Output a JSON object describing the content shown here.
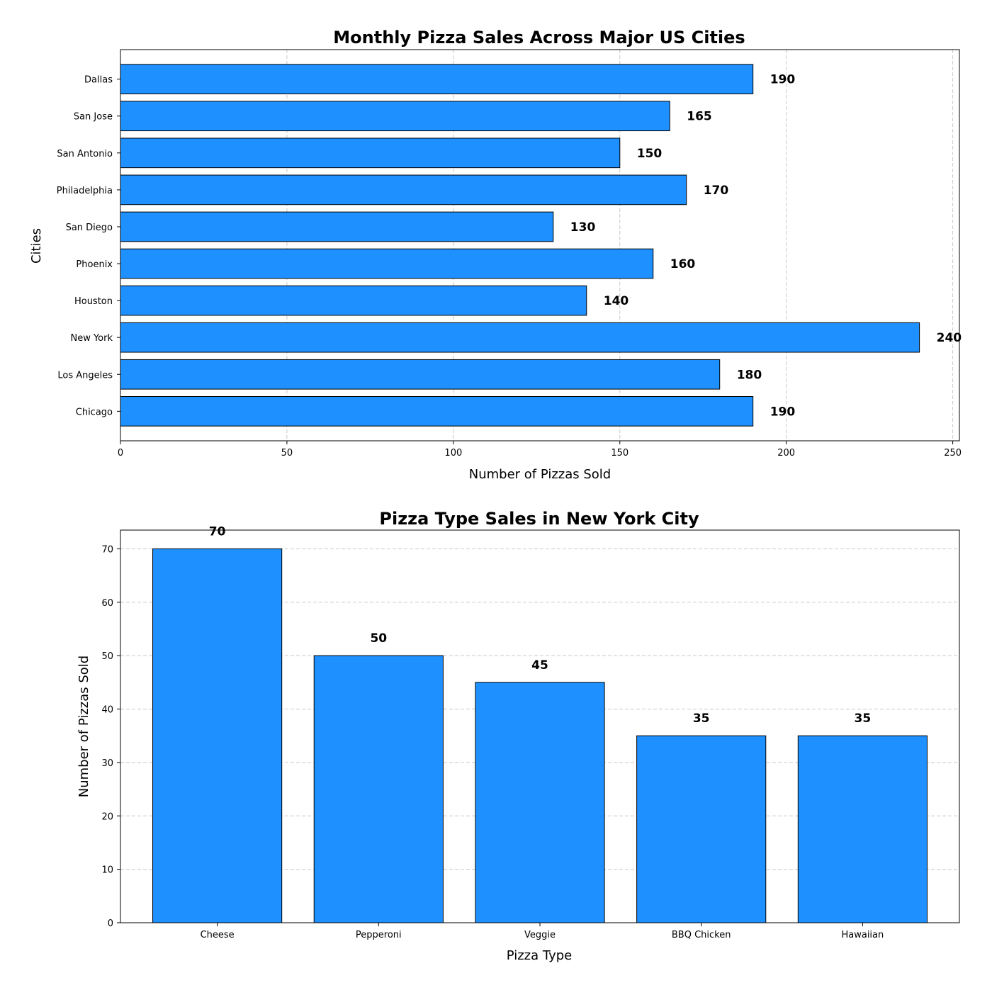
{
  "chart_data": [
    {
      "type": "bar",
      "orientation": "horizontal",
      "title": "Monthly Pizza Sales Across Major US Cities",
      "xlabel": "Number of Pizzas Sold",
      "ylabel": "Cities",
      "categories": [
        "Chicago",
        "Los Angeles",
        "New York",
        "Houston",
        "Phoenix",
        "San Diego",
        "Philadelphia",
        "San Antonio",
        "San Jose",
        "Dallas"
      ],
      "values": [
        190,
        180,
        240,
        140,
        160,
        130,
        170,
        150,
        165,
        190
      ],
      "value_labels": [
        "190",
        "180",
        "240",
        "140",
        "160",
        "130",
        "170",
        "150",
        "165",
        "190"
      ],
      "xlim": [
        0,
        252
      ],
      "xticks": [
        0,
        50,
        100,
        150,
        200,
        250
      ],
      "xtick_labels": [
        "0",
        "50",
        "100",
        "150",
        "200",
        "250"
      ],
      "grid": "x-axis dashed",
      "bar_color": "#1E90FF",
      "edge_color": "#000000"
    },
    {
      "type": "bar",
      "orientation": "vertical",
      "title": "Pizza Type Sales in New York City",
      "xlabel": "Pizza Type",
      "ylabel": "Number of Pizzas Sold",
      "categories": [
        "Cheese",
        "Pepperoni",
        "Veggie",
        "BBQ Chicken",
        "Hawaiian"
      ],
      "values": [
        70,
        50,
        45,
        35,
        35
      ],
      "value_labels": [
        "70",
        "50",
        "45",
        "35",
        "35"
      ],
      "ylim": [
        0,
        73.5
      ],
      "yticks": [
        0,
        10,
        20,
        30,
        40,
        50,
        60,
        70
      ],
      "ytick_labels": [
        "0",
        "10",
        "20",
        "30",
        "40",
        "50",
        "60",
        "70"
      ],
      "grid": "y-axis dashed",
      "bar_color": "#1E90FF",
      "edge_color": "#000000"
    }
  ]
}
